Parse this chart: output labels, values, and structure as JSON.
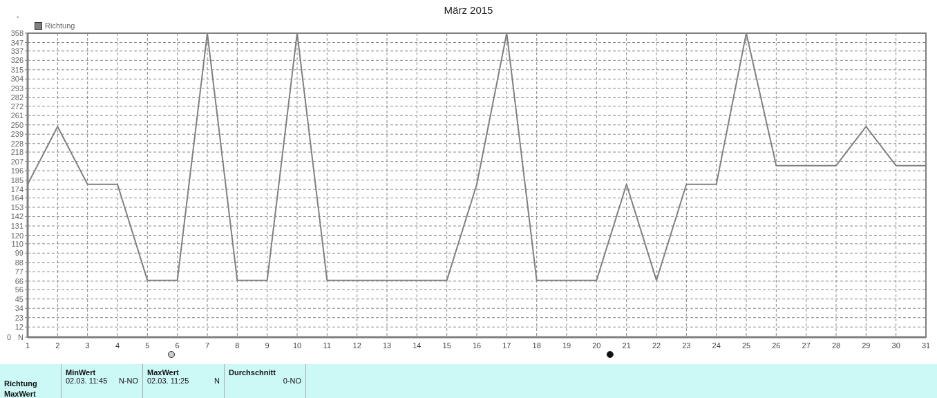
{
  "chart_data": {
    "type": "line",
    "title": "März 2015",
    "ylabel": "°",
    "x": [
      1,
      2,
      3,
      4,
      5,
      6,
      7,
      8,
      9,
      10,
      11,
      12,
      13,
      14,
      15,
      16,
      17,
      18,
      19,
      20,
      21,
      22,
      23,
      24,
      25,
      26,
      27,
      28,
      29,
      30,
      31
    ],
    "series": [
      {
        "name": "Richtung",
        "color": "#808080",
        "values": [
          180,
          248,
          180,
          180,
          67,
          67,
          358,
          67,
          67,
          358,
          67,
          67,
          67,
          67,
          67,
          180,
          358,
          67,
          67,
          67,
          180,
          67,
          180,
          180,
          358,
          202,
          202,
          202,
          248,
          202,
          202
        ]
      }
    ],
    "xlim": [
      1,
      31
    ],
    "xticks": [
      1,
      2,
      3,
      4,
      5,
      6,
      7,
      8,
      9,
      10,
      11,
      12,
      13,
      14,
      15,
      16,
      17,
      18,
      19,
      20,
      21,
      22,
      23,
      24,
      25,
      26,
      27,
      28,
      29,
      30,
      31
    ],
    "ylim": [
      0,
      358
    ],
    "yticks": [
      {
        "value": 0,
        "label": "0 N"
      },
      12,
      23,
      34,
      45,
      56,
      66,
      77,
      88,
      99,
      110,
      120,
      131,
      142,
      153,
      164,
      174,
      185,
      196,
      207,
      218,
      228,
      239,
      250,
      261,
      272,
      282,
      293,
      304,
      315,
      326,
      337,
      347,
      358
    ],
    "grid": true,
    "legend": "top left",
    "marker": "none",
    "line_style": "solid",
    "annotations": [
      "Richtung",
      "MaxWert",
      "MinWert",
      "02.03. 11:45",
      "N-NO",
      "MaxWert",
      "02.03. 11:25",
      "N",
      "Durchschnitt",
      "0-NO"
    ]
  }
}
